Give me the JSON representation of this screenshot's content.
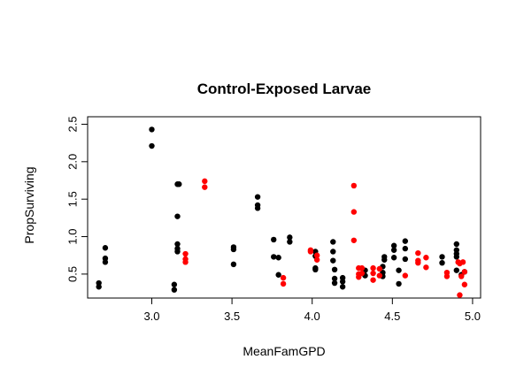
{
  "chart_data": {
    "type": "scatter",
    "title": "Control-Exposed Larvae",
    "xlabel": "MeanFamGPD",
    "ylabel": "PropSurviving",
    "xlim": [
      2.6,
      5.05
    ],
    "ylim": [
      0.18,
      2.6
    ],
    "xticks": [
      "3.0",
      "3.5",
      "4.0",
      "4.5",
      "5.0"
    ],
    "yticks": [
      "0.5",
      "1.0",
      "1.5",
      "2.0",
      "2.5"
    ],
    "grid": false,
    "legend": "none",
    "series": [
      {
        "color": "#000000",
        "points": [
          [
            2.67,
            0.38
          ],
          [
            2.67,
            0.33
          ],
          [
            2.71,
            0.85
          ],
          [
            2.71,
            0.71
          ],
          [
            2.71,
            0.66
          ],
          [
            3.0,
            2.43
          ],
          [
            3.0,
            2.21
          ],
          [
            3.14,
            0.36
          ],
          [
            3.14,
            0.29
          ],
          [
            3.16,
            1.7
          ],
          [
            3.17,
            1.7
          ],
          [
            3.16,
            1.27
          ],
          [
            3.16,
            0.9
          ],
          [
            3.16,
            0.84
          ],
          [
            3.16,
            0.8
          ],
          [
            3.51,
            0.86
          ],
          [
            3.51,
            0.83
          ],
          [
            3.51,
            0.63
          ],
          [
            3.66,
            1.53
          ],
          [
            3.66,
            1.42
          ],
          [
            3.66,
            1.38
          ],
          [
            3.76,
            0.96
          ],
          [
            3.76,
            0.73
          ],
          [
            3.79,
            0.72
          ],
          [
            3.79,
            0.49
          ],
          [
            3.86,
            0.99
          ],
          [
            3.86,
            0.93
          ],
          [
            4.02,
            0.8
          ],
          [
            4.02,
            0.74
          ],
          [
            4.02,
            0.58
          ],
          [
            4.02,
            0.56
          ],
          [
            4.13,
            0.93
          ],
          [
            4.13,
            0.8
          ],
          [
            4.13,
            0.68
          ],
          [
            4.14,
            0.56
          ],
          [
            4.14,
            0.44
          ],
          [
            4.14,
            0.38
          ],
          [
            4.19,
            0.45
          ],
          [
            4.19,
            0.4
          ],
          [
            4.19,
            0.33
          ],
          [
            4.33,
            0.55
          ],
          [
            4.33,
            0.48
          ],
          [
            4.44,
            0.6
          ],
          [
            4.44,
            0.52
          ],
          [
            4.44,
            0.47
          ],
          [
            4.45,
            0.73
          ],
          [
            4.45,
            0.69
          ],
          [
            4.51,
            0.88
          ],
          [
            4.51,
            0.82
          ],
          [
            4.51,
            0.72
          ],
          [
            4.54,
            0.55
          ],
          [
            4.54,
            0.37
          ],
          [
            4.58,
            0.94
          ],
          [
            4.58,
            0.84
          ],
          [
            4.58,
            0.7
          ],
          [
            4.81,
            0.73
          ],
          [
            4.81,
            0.65
          ],
          [
            4.9,
            0.9
          ],
          [
            4.9,
            0.82
          ],
          [
            4.9,
            0.77
          ],
          [
            4.9,
            0.73
          ],
          [
            4.9,
            0.55
          ],
          [
            4.93,
            0.49
          ],
          [
            4.95,
            0.53
          ]
        ]
      },
      {
        "color": "#ff0000",
        "points": [
          [
            3.21,
            0.77
          ],
          [
            3.21,
            0.7
          ],
          [
            3.21,
            0.66
          ],
          [
            3.33,
            1.74
          ],
          [
            3.33,
            1.66
          ],
          [
            3.82,
            0.45
          ],
          [
            3.82,
            0.37
          ],
          [
            3.99,
            0.82
          ],
          [
            3.99,
            0.8
          ],
          [
            4.03,
            0.75
          ],
          [
            4.03,
            0.69
          ],
          [
            4.26,
            1.68
          ],
          [
            4.26,
            1.33
          ],
          [
            4.26,
            0.95
          ],
          [
            4.29,
            0.58
          ],
          [
            4.29,
            0.5
          ],
          [
            4.29,
            0.46
          ],
          [
            4.31,
            0.58
          ],
          [
            4.31,
            0.51
          ],
          [
            4.38,
            0.58
          ],
          [
            4.38,
            0.51
          ],
          [
            4.38,
            0.42
          ],
          [
            4.42,
            0.57
          ],
          [
            4.42,
            0.48
          ],
          [
            4.58,
            0.48
          ],
          [
            4.66,
            0.78
          ],
          [
            4.66,
            0.68
          ],
          [
            4.66,
            0.65
          ],
          [
            4.71,
            0.72
          ],
          [
            4.71,
            0.59
          ],
          [
            4.84,
            0.52
          ],
          [
            4.84,
            0.47
          ],
          [
            4.91,
            0.66
          ],
          [
            4.92,
            0.64
          ],
          [
            4.92,
            0.22
          ],
          [
            4.93,
            0.47
          ],
          [
            4.94,
            0.66
          ],
          [
            4.95,
            0.53
          ],
          [
            4.95,
            0.36
          ]
        ]
      }
    ]
  }
}
